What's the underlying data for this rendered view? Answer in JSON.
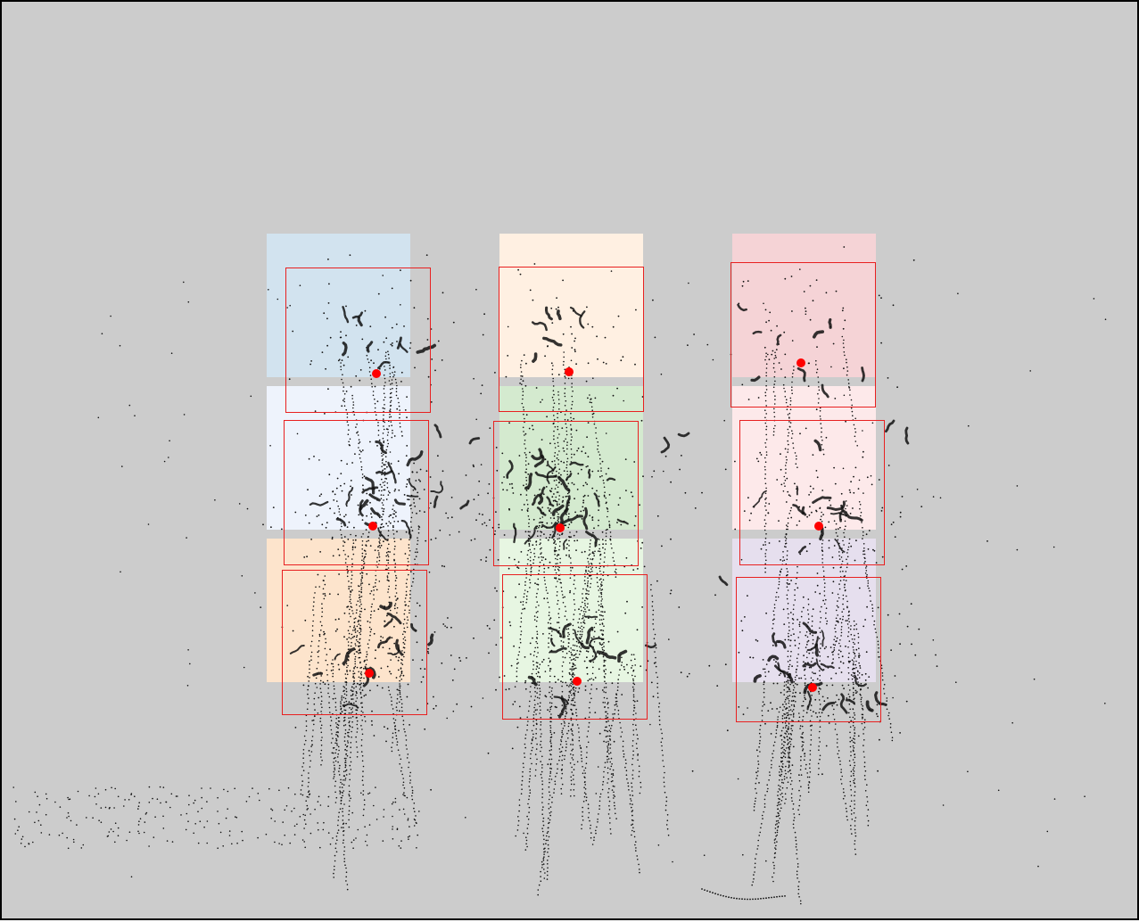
{
  "scene": {
    "background_color": "#cccccc",
    "border_color": "#000000",
    "target_box_color": "#e82020",
    "center_marker_color": "#ff0000",
    "trace_color": "#111111"
  },
  "grid": {
    "rows": 3,
    "cols": 3,
    "cells": [
      {
        "row": 0,
        "col": 0,
        "fill": "#d2e3ef"
      },
      {
        "row": 0,
        "col": 1,
        "fill": "#fff0e2"
      },
      {
        "row": 0,
        "col": 2,
        "fill": "#f5d3d6"
      },
      {
        "row": 1,
        "col": 0,
        "fill": "#eef3fc"
      },
      {
        "row": 1,
        "col": 1,
        "fill": "#d4eacf"
      },
      {
        "row": 1,
        "col": 2,
        "fill": "#fde9ea"
      },
      {
        "row": 2,
        "col": 0,
        "fill": "#fde4cc"
      },
      {
        "row": 2,
        "col": 1,
        "fill": "#e7f6e2"
      },
      {
        "row": 2,
        "col": 2,
        "fill": "#e6dfee"
      }
    ]
  }
}
